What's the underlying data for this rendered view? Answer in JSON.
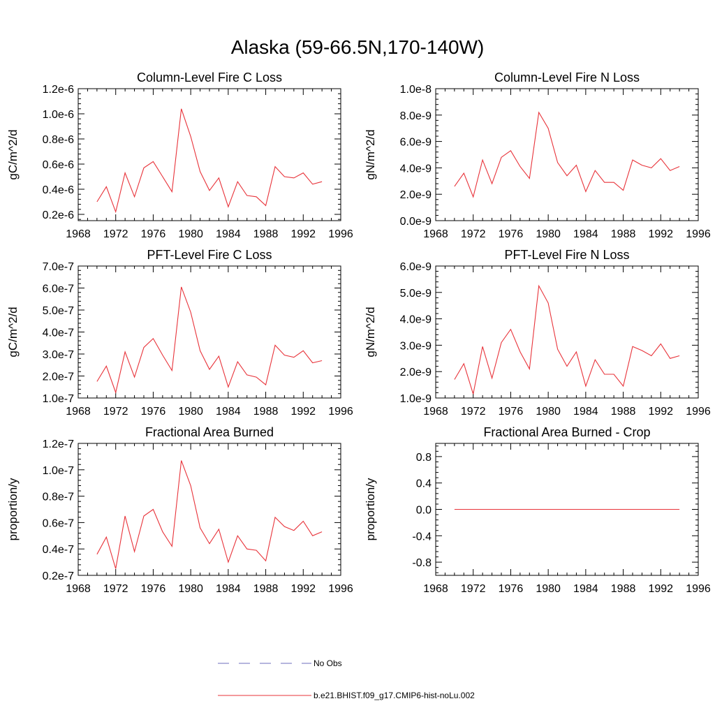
{
  "page": {
    "title": "Alaska (59-66.5N,170-140W)"
  },
  "legend": [
    {
      "label": "No Obs",
      "color": "#6e6ebe",
      "dashed": true
    },
    {
      "label": "b.e21.BHIST.f09_g17.CMIP6-hist-noLu.002",
      "color": "#e8333a",
      "dashed": false
    }
  ],
  "chart_data": [
    {
      "type": "line",
      "title": "Column-Level Fire C Loss",
      "ylabel": "gC/m^2/d",
      "xlim": [
        1968,
        1996
      ],
      "ylim": [
        1.5e-07,
        1.2e-06
      ],
      "xticks": [
        1968,
        1972,
        1976,
        1980,
        1984,
        1988,
        1992,
        1996
      ],
      "xticklabels": [
        "1968",
        "1972",
        "1976",
        "1980",
        "1984",
        "1988",
        "1992",
        "1996"
      ],
      "yticks": [
        2e-07,
        4e-07,
        6e-07,
        8e-07,
        1e-06,
        1.2e-06
      ],
      "yticklabels": [
        "0.2e-6",
        "0.4e-6",
        "0.6e-6",
        "0.8e-6",
        "1.0e-6",
        "1.2e-6"
      ],
      "grid": false,
      "series": [
        {
          "color": "#e8333a",
          "x": [
            1970,
            1971,
            1972,
            1973,
            1974,
            1975,
            1976,
            1977,
            1978,
            1979,
            1980,
            1981,
            1982,
            1983,
            1984,
            1985,
            1986,
            1987,
            1988,
            1989,
            1990,
            1991,
            1992,
            1993,
            1994
          ],
          "y": [
            3e-07,
            4.2e-07,
            2.2e-07,
            5.3e-07,
            3.4e-07,
            5.7e-07,
            6.2e-07,
            5e-07,
            3.8e-07,
            1.04e-06,
            8.2e-07,
            5.4e-07,
            3.9e-07,
            4.9e-07,
            2.6e-07,
            4.6e-07,
            3.5e-07,
            3.4e-07,
            2.7e-07,
            5.8e-07,
            5e-07,
            4.9e-07,
            5.3e-07,
            4.4e-07,
            4.6e-07
          ]
        }
      ]
    },
    {
      "type": "line",
      "title": "Column-Level Fire N Loss",
      "ylabel": "gN/m^2/d",
      "xlim": [
        1968,
        1996
      ],
      "ylim": [
        0.0,
        1e-08
      ],
      "xticks": [
        1968,
        1972,
        1976,
        1980,
        1984,
        1988,
        1992,
        1996
      ],
      "xticklabels": [
        "1968",
        "1972",
        "1976",
        "1980",
        "1984",
        "1988",
        "1992",
        "1996"
      ],
      "yticks": [
        0.0,
        2e-09,
        4e-09,
        6e-09,
        8e-09,
        1e-08
      ],
      "yticklabels": [
        "0.0e-9",
        "2.0e-9",
        "4.0e-9",
        "6.0e-9",
        "8.0e-9",
        "1.0e-8"
      ],
      "grid": false,
      "series": [
        {
          "color": "#e8333a",
          "x": [
            1970,
            1971,
            1972,
            1973,
            1974,
            1975,
            1976,
            1977,
            1978,
            1979,
            1980,
            1981,
            1982,
            1983,
            1984,
            1985,
            1986,
            1987,
            1988,
            1989,
            1990,
            1991,
            1992,
            1993,
            1994
          ],
          "y": [
            2.6e-09,
            3.6e-09,
            1.8e-09,
            4.6e-09,
            2.8e-09,
            4.8e-09,
            5.3e-09,
            4.1e-09,
            3.2e-09,
            8.2e-09,
            7e-09,
            4.4e-09,
            3.4e-09,
            4.2e-09,
            2.2e-09,
            3.8e-09,
            2.9e-09,
            2.9e-09,
            2.3e-09,
            4.6e-09,
            4.2e-09,
            4e-09,
            4.7e-09,
            3.8e-09,
            4.1e-09
          ]
        }
      ]
    },
    {
      "type": "line",
      "title": "PFT-Level Fire C Loss",
      "ylabel": "gC/m^2/d",
      "xlim": [
        1968,
        1996
      ],
      "ylim": [
        1e-07,
        7e-07
      ],
      "xticks": [
        1968,
        1972,
        1976,
        1980,
        1984,
        1988,
        1992,
        1996
      ],
      "xticklabels": [
        "1968",
        "1972",
        "1976",
        "1980",
        "1984",
        "1988",
        "1992",
        "1996"
      ],
      "yticks": [
        1e-07,
        2e-07,
        3e-07,
        4e-07,
        5e-07,
        6e-07,
        7e-07
      ],
      "yticklabels": [
        "1.0e-7",
        "2.0e-7",
        "3.0e-7",
        "4.0e-7",
        "5.0e-7",
        "6.0e-7",
        "7.0e-7"
      ],
      "grid": false,
      "series": [
        {
          "color": "#e8333a",
          "x": [
            1970,
            1971,
            1972,
            1973,
            1974,
            1975,
            1976,
            1977,
            1978,
            1979,
            1980,
            1981,
            1982,
            1983,
            1984,
            1985,
            1986,
            1987,
            1988,
            1989,
            1990,
            1991,
            1992,
            1993,
            1994
          ],
          "y": [
            1.75e-07,
            2.45e-07,
            1.25e-07,
            3.1e-07,
            1.95e-07,
            3.3e-07,
            3.7e-07,
            2.95e-07,
            2.25e-07,
            6.05e-07,
            4.9e-07,
            3.15e-07,
            2.3e-07,
            2.9e-07,
            1.5e-07,
            2.65e-07,
            2.05e-07,
            1.95e-07,
            1.6e-07,
            3.4e-07,
            2.95e-07,
            2.85e-07,
            3.15e-07,
            2.6e-07,
            2.7e-07
          ]
        }
      ]
    },
    {
      "type": "line",
      "title": "PFT-Level Fire N Loss",
      "ylabel": "gN/m^2/d",
      "xlim": [
        1968,
        1996
      ],
      "ylim": [
        1e-09,
        6e-09
      ],
      "xticks": [
        1968,
        1972,
        1976,
        1980,
        1984,
        1988,
        1992,
        1996
      ],
      "xticklabels": [
        "1968",
        "1972",
        "1976",
        "1980",
        "1984",
        "1988",
        "1992",
        "1996"
      ],
      "yticks": [
        1e-09,
        2e-09,
        3e-09,
        4e-09,
        5e-09,
        6e-09
      ],
      "yticklabels": [
        "1.0e-9",
        "2.0e-9",
        "3.0e-9",
        "4.0e-9",
        "5.0e-9",
        "6.0e-9"
      ],
      "grid": false,
      "series": [
        {
          "color": "#e8333a",
          "x": [
            1970,
            1971,
            1972,
            1973,
            1974,
            1975,
            1976,
            1977,
            1978,
            1979,
            1980,
            1981,
            1982,
            1983,
            1984,
            1985,
            1986,
            1987,
            1988,
            1989,
            1990,
            1991,
            1992,
            1993,
            1994
          ],
          "y": [
            1.7e-09,
            2.3e-09,
            1.15e-09,
            2.95e-09,
            1.75e-09,
            3.1e-09,
            3.6e-09,
            2.75e-09,
            2.1e-09,
            5.25e-09,
            4.6e-09,
            2.85e-09,
            2.2e-09,
            2.75e-09,
            1.45e-09,
            2.45e-09,
            1.9e-09,
            1.9e-09,
            1.45e-09,
            2.95e-09,
            2.8e-09,
            2.6e-09,
            3.05e-09,
            2.5e-09,
            2.6e-09
          ]
        }
      ]
    },
    {
      "type": "line",
      "title": "Fractional Area Burned",
      "ylabel": "proportion/y",
      "xlim": [
        1968,
        1996
      ],
      "ylim": [
        2e-08,
        1.2e-07
      ],
      "xticks": [
        1968,
        1972,
        1976,
        1980,
        1984,
        1988,
        1992,
        1996
      ],
      "xticklabels": [
        "1968",
        "1972",
        "1976",
        "1980",
        "1984",
        "1988",
        "1992",
        "1996"
      ],
      "yticks": [
        2e-08,
        4e-08,
        6e-08,
        8e-08,
        1e-07,
        1.2e-07
      ],
      "yticklabels": [
        "0.2e-7",
        "0.4e-7",
        "0.6e-7",
        "0.8e-7",
        "1.0e-7",
        "1.2e-7"
      ],
      "grid": false,
      "series": [
        {
          "color": "#e8333a",
          "x": [
            1970,
            1971,
            1972,
            1973,
            1974,
            1975,
            1976,
            1977,
            1978,
            1979,
            1980,
            1981,
            1982,
            1983,
            1984,
            1985,
            1986,
            1987,
            1988,
            1989,
            1990,
            1991,
            1992,
            1993,
            1994
          ],
          "y": [
            3.6e-08,
            4.9e-08,
            2.5e-08,
            6.5e-08,
            3.8e-08,
            6.5e-08,
            7e-08,
            5.3e-08,
            4.2e-08,
            1.07e-07,
            8.8e-08,
            5.6e-08,
            4.4e-08,
            5.5e-08,
            3e-08,
            5e-08,
            4e-08,
            3.9e-08,
            3.1e-08,
            6.4e-08,
            5.7e-08,
            5.4e-08,
            6.1e-08,
            5e-08,
            5.3e-08
          ]
        }
      ]
    },
    {
      "type": "line",
      "title": "Fractional Area Burned - Crop",
      "ylabel": "proportion/y",
      "xlim": [
        1968,
        1996
      ],
      "ylim": [
        -1.0,
        1.0
      ],
      "xticks": [
        1968,
        1972,
        1976,
        1980,
        1984,
        1988,
        1992,
        1996
      ],
      "xticklabels": [
        "1968",
        "1972",
        "1976",
        "1980",
        "1984",
        "1988",
        "1992",
        "1996"
      ],
      "yticks": [
        -0.8,
        -0.4,
        0.0,
        0.4,
        0.8
      ],
      "yticklabels": [
        "-0.8",
        "-0.4",
        "0.0",
        "0.4",
        "0.8"
      ],
      "grid": false,
      "series": [
        {
          "color": "#e8333a",
          "x": [
            1970,
            1994
          ],
          "y": [
            0.0,
            0.0
          ]
        }
      ]
    }
  ]
}
